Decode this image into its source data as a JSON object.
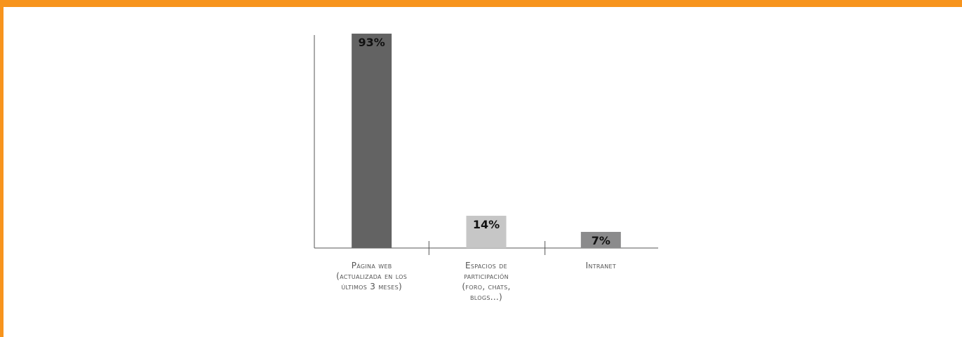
{
  "colors": {
    "frame": "#f7941d",
    "axis": "#555555"
  },
  "chart_data": {
    "type": "bar",
    "categories": [
      "Página web (actualizada en los últimos 3 meses)",
      "Espacios de participación (foro, chats, blogs...)",
      "Intranet"
    ],
    "category_lines": [
      [
        "Página web",
        "(actualizada en los",
        "últimos 3 meses)"
      ],
      [
        "Espacios de",
        "participación",
        "(foro, chats,",
        "blogs...)"
      ],
      [
        "Intranet"
      ]
    ],
    "values": [
      93,
      14,
      7
    ],
    "value_labels": [
      "93%",
      "14%",
      "7%"
    ],
    "bar_colors": [
      "#636363",
      "#c6c6c6",
      "#8b8b8c"
    ],
    "ylim": [
      0,
      100
    ],
    "title": "",
    "xlabel": "",
    "ylabel": "",
    "grid": false
  }
}
